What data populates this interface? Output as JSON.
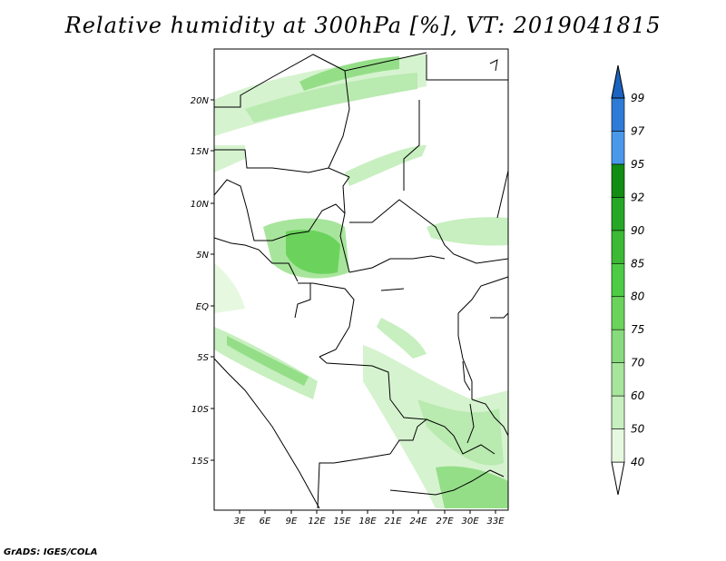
{
  "title": "Relative humidity at 300hPa [%], VT: 2019041815",
  "credit": "GrADS: IGES/COLA",
  "map": {
    "lon_labels": [
      "3E",
      "6E",
      "9E",
      "12E",
      "15E",
      "18E",
      "21E",
      "24E",
      "27E",
      "30E",
      "33E"
    ],
    "lat_labels": [
      "20N",
      "15N",
      "10N",
      "5N",
      "EQ",
      "5S",
      "10S",
      "15S"
    ]
  },
  "colorbar": {
    "labels": [
      "40",
      "50",
      "60",
      "70",
      "75",
      "80",
      "85",
      "90",
      "92",
      "95",
      "97",
      "99"
    ],
    "colors": [
      "#ffffff",
      "#e6f9e0",
      "#c7efbf",
      "#a8e59c",
      "#88db7c",
      "#6bd35c",
      "#4ecb45",
      "#3cb935",
      "#26a726",
      "#138c13",
      "#4a98ea",
      "#2d7bd6",
      "#1b63c1"
    ]
  }
}
